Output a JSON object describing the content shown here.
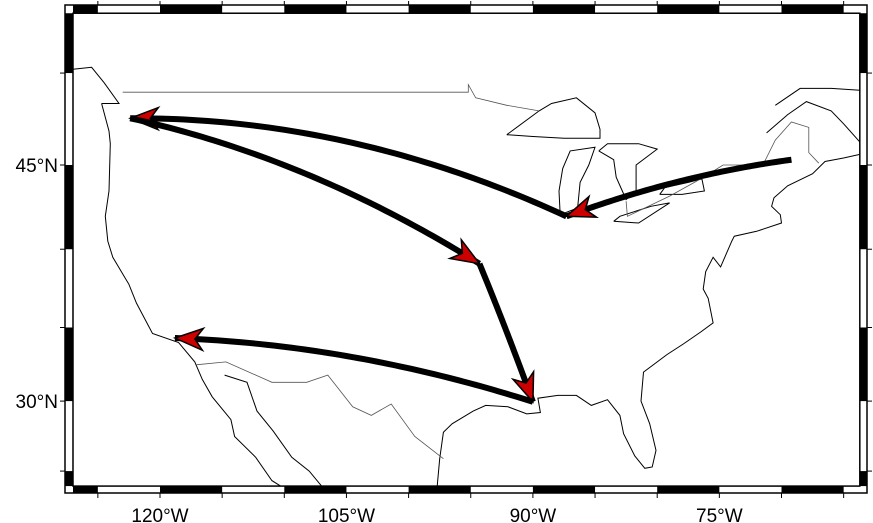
{
  "map": {
    "projection": "mercator",
    "region": {
      "lon_min": -127,
      "lon_max": -63.7,
      "lat_min": 23.9,
      "lat_max": 53
    },
    "frame_style": "fancy-checkered",
    "lat_labels": [
      {
        "value": 45,
        "text": "45°N"
      },
      {
        "value": 30,
        "text": "30°N"
      }
    ],
    "lon_labels": [
      {
        "value": -120,
        "text": "120°W"
      },
      {
        "value": -105,
        "text": "105°W"
      },
      {
        "value": -90,
        "text": "90°W"
      },
      {
        "value": -75,
        "text": "75°W"
      }
    ],
    "arrow_color": "#000000",
    "arrowhead_color": "#cc0000",
    "route": [
      {
        "from": [
          -69.2,
          45.3
        ],
        "to": [
          -87.3,
          42.0
        ]
      },
      {
        "from": [
          -87.3,
          42.0
        ],
        "to": [
          -122.4,
          47.6
        ]
      },
      {
        "from": [
          -122.4,
          47.6
        ],
        "to": [
          -94.3,
          39.1
        ]
      },
      {
        "from": [
          -94.3,
          39.1
        ],
        "to": [
          -90.0,
          29.95
        ]
      },
      {
        "from": [
          -90.0,
          29.95
        ],
        "to": [
          -118.8,
          34.3
        ]
      }
    ]
  }
}
